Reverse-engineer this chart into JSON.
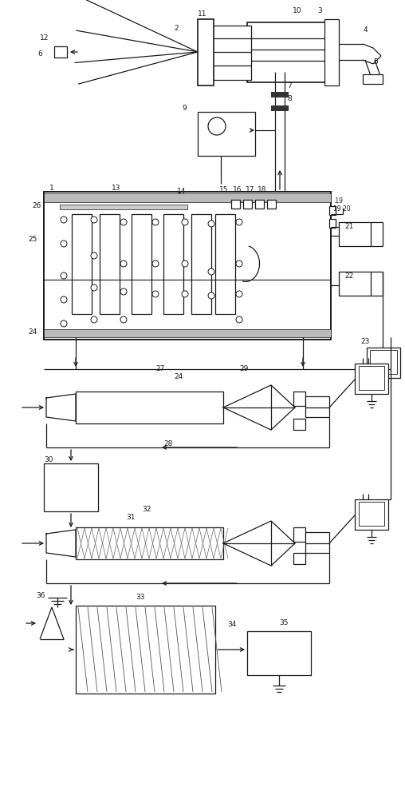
{
  "bg_color": "#ffffff",
  "line_color": "#1a1a1a",
  "line_width": 0.9,
  "fig_width": 5.08,
  "fig_height": 10.0,
  "dpi": 100
}
